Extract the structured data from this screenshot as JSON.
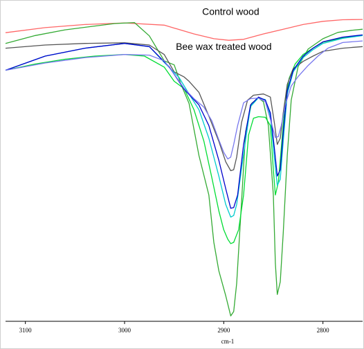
{
  "chart_data": {
    "type": "line",
    "title": "",
    "xlabel": "cm-1",
    "ylabel": "",
    "x_reversed": true,
    "xlim": [
      3120,
      2760
    ],
    "ylim": [
      0,
      100
    ],
    "x_ticks": [
      3100,
      3000,
      2900,
      2800
    ],
    "x_tick_labels": [
      "3100",
      "3000",
      "2900",
      "2800"
    ],
    "grid": false,
    "legend": "none",
    "annotations": [
      {
        "text": "Control wood",
        "x": 2893,
        "y": 97
      },
      {
        "text": "Bee wax treated wood",
        "x": 2900,
        "y": 86
      }
    ],
    "series": [
      {
        "color": "#ff6666",
        "x": [
          3120,
          3080,
          3040,
          3000,
          2960,
          2930,
          2910,
          2895,
          2880,
          2860,
          2840,
          2820,
          2800,
          2780,
          2760
        ],
        "y": [
          91.4,
          93,
          94,
          94.5,
          93.8,
          91,
          89.5,
          89,
          89.3,
          91,
          92.5,
          94,
          95,
          95.5,
          95.6
        ]
      },
      {
        "color": "#33aa33",
        "x": [
          3120,
          3090,
          3060,
          3030,
          3010,
          2990,
          2975,
          2960,
          2950,
          2943,
          2935,
          2925,
          2915,
          2910,
          2905,
          2898,
          2893,
          2890,
          2887,
          2882,
          2878,
          2872,
          2865,
          2860,
          2855,
          2850,
          2848,
          2846,
          2843,
          2840,
          2836,
          2832,
          2825,
          2815,
          2800,
          2785,
          2770,
          2760
        ],
        "y": [
          88,
          90.5,
          92.3,
          93.5,
          94.3,
          94.6,
          90.4,
          82.5,
          81.2,
          75,
          69,
          52.5,
          40,
          25,
          16,
          8.1,
          1.7,
          3.1,
          12,
          38,
          60,
          69,
          70.8,
          69.5,
          62,
          40,
          18.4,
          8.5,
          12.5,
          28,
          52.5,
          70,
          80.7,
          86.2,
          89.5,
          91.5,
          92.2,
          92.5
        ]
      },
      {
        "color": "#00dd33",
        "x": [
          3120,
          3090,
          3060,
          3030,
          3000,
          2980,
          2960,
          2950,
          2940,
          2930,
          2920,
          2912,
          2905,
          2900,
          2896,
          2893,
          2890,
          2885,
          2880,
          2875,
          2870,
          2865,
          2858,
          2853,
          2850,
          2848,
          2845,
          2842,
          2838,
          2834,
          2828,
          2820,
          2810,
          2800,
          2780,
          2760
        ],
        "y": [
          79.5,
          81.5,
          83,
          84,
          84.5,
          84,
          80.5,
          76,
          73.7,
          67,
          57,
          45.5,
          35,
          29,
          26,
          24.6,
          25,
          29,
          40,
          59,
          64.3,
          64.8,
          64.6,
          62,
          48,
          40,
          44,
          55,
          70,
          77,
          81.5,
          84.5,
          86.5,
          88.4,
          89.8,
          90.6
        ]
      },
      {
        "color": "#555555",
        "x": [
          3120,
          3080,
          3040,
          3000,
          2975,
          2960,
          2950,
          2940,
          2935,
          2925,
          2915,
          2905,
          2898,
          2893,
          2890,
          2887,
          2882,
          2876,
          2870,
          2860,
          2853,
          2849,
          2846,
          2843,
          2840,
          2836,
          2830,
          2820,
          2810,
          2800,
          2780,
          2760
        ],
        "y": [
          86.5,
          87.5,
          88,
          88.2,
          87.5,
          84.5,
          79,
          77.4,
          76,
          72.5,
          65,
          57,
          50.5,
          47.7,
          48,
          52,
          63,
          70,
          71.6,
          72,
          71,
          63,
          56,
          58,
          66,
          75,
          80,
          82.3,
          84,
          85.5,
          86.5,
          87
        ]
      },
      {
        "color": "#00cccc",
        "x": [
          3120,
          3080,
          3040,
          3000,
          2975,
          2960,
          2945,
          2935,
          2925,
          2915,
          2905,
          2898,
          2893,
          2890,
          2887,
          2880,
          2873,
          2865,
          2858,
          2853,
          2849,
          2846,
          2843,
          2840,
          2836,
          2830,
          2820,
          2810,
          2800,
          2780,
          2760
        ],
        "y": [
          79.5,
          84,
          86.5,
          88,
          87,
          82,
          77.2,
          72,
          67,
          58,
          46,
          37,
          33,
          33.5,
          37,
          53,
          68,
          70.8,
          70.2,
          65,
          52,
          43,
          45,
          57,
          72,
          79,
          83.5,
          86,
          88,
          89.6,
          90.5
        ]
      },
      {
        "color": "#0000cc",
        "x": [
          3120,
          3080,
          3040,
          3000,
          2975,
          2955,
          2940,
          2925,
          2915,
          2905,
          2898,
          2893,
          2890,
          2886,
          2880,
          2873,
          2865,
          2858,
          2853,
          2849,
          2846,
          2843,
          2840,
          2836,
          2830,
          2820,
          2810,
          2800,
          2780,
          2760
        ],
        "y": [
          79.5,
          84,
          86.5,
          88,
          87,
          80.6,
          73.5,
          68.5,
          62,
          51,
          42,
          35.8,
          36,
          40,
          56,
          68.5,
          71,
          70,
          66,
          55,
          46,
          48,
          60,
          73,
          79.5,
          84,
          86.5,
          88.5,
          90,
          90.7
        ]
      },
      {
        "color": "#7777ee",
        "x": [
          3120,
          3080,
          3040,
          3000,
          2975,
          2960,
          2950,
          2940,
          2930,
          2920,
          2912,
          2905,
          2900,
          2896,
          2893,
          2890,
          2886,
          2880,
          2873,
          2865,
          2858,
          2853,
          2848,
          2845,
          2842,
          2838,
          2832,
          2825,
          2815,
          2805,
          2795,
          2780,
          2760
        ],
        "y": [
          79.5,
          81.8,
          83.5,
          84.5,
          84.3,
          82.5,
          78.3,
          73.8,
          70.5,
          67.8,
          63.5,
          57.5,
          53.5,
          51.4,
          52,
          56,
          62,
          69.2,
          70.5,
          70.7,
          69.5,
          64,
          58.2,
          58.5,
          62,
          68.5,
          74.5,
          77.5,
          81,
          84,
          86.5,
          88.3,
          88.8
        ]
      }
    ]
  }
}
